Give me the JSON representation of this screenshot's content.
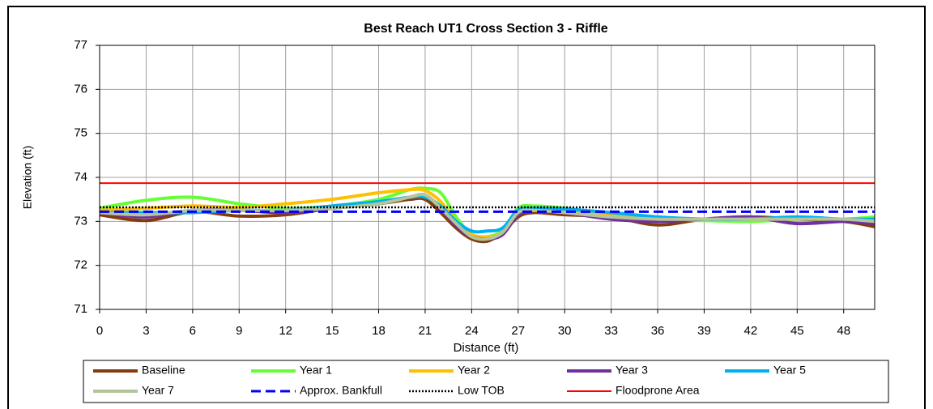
{
  "chart_data": {
    "type": "line",
    "title": "Best Reach UT1 Cross Section 3 - Riffle",
    "x_label": "Distance (ft)",
    "y_label": "Elevation (ft)",
    "x": [
      0,
      3,
      6,
      9,
      12,
      15,
      18,
      20,
      21,
      22,
      23,
      24,
      25,
      26,
      27,
      28,
      30,
      33,
      36,
      39,
      42,
      45,
      48,
      50
    ],
    "xlim": [
      0,
      50
    ],
    "xticks": [
      0,
      3,
      6,
      9,
      12,
      15,
      18,
      21,
      24,
      27,
      30,
      33,
      36,
      39,
      42,
      45,
      48
    ],
    "ylim": [
      71,
      77
    ],
    "yticks": [
      71,
      72,
      73,
      74,
      75,
      76,
      77
    ],
    "grid": true,
    "legend": "bottom",
    "series": [
      {
        "name": "Baseline",
        "color": "#843c0c",
        "line_width": 4,
        "smooth": true,
        "values": [
          73.15,
          73.02,
          73.22,
          73.12,
          73.15,
          73.3,
          73.4,
          73.5,
          73.5,
          73.2,
          72.85,
          72.6,
          72.55,
          72.75,
          73.1,
          73.2,
          73.15,
          73.1,
          72.92,
          73.05,
          73.1,
          73.05,
          73.0,
          72.88
        ]
      },
      {
        "name": "Year 1",
        "color": "#66ff33",
        "line_width": 4,
        "smooth": true,
        "values": [
          73.3,
          73.48,
          73.55,
          73.4,
          73.3,
          73.35,
          73.5,
          73.72,
          73.75,
          73.65,
          73.1,
          72.7,
          72.65,
          72.8,
          73.3,
          73.35,
          73.3,
          73.15,
          73.05,
          73.02,
          73.0,
          73.05,
          73.05,
          73.1
        ]
      },
      {
        "name": "Year 2",
        "color": "#ffc000",
        "line_width": 4,
        "smooth": true,
        "values": [
          73.25,
          73.3,
          73.35,
          73.32,
          73.4,
          73.5,
          73.65,
          73.72,
          73.7,
          73.45,
          73.0,
          72.7,
          72.65,
          72.75,
          73.2,
          73.3,
          73.25,
          73.15,
          73.05,
          73.05,
          73.05,
          73.05,
          73.05,
          73.0
        ]
      },
      {
        "name": "Year 3",
        "color": "#7030a0",
        "line_width": 4,
        "smooth": true,
        "values": [
          73.2,
          73.1,
          73.25,
          73.25,
          73.2,
          73.3,
          73.4,
          73.55,
          73.6,
          73.3,
          72.9,
          72.65,
          72.6,
          72.7,
          73.15,
          73.25,
          73.2,
          73.05,
          73.0,
          73.05,
          73.1,
          72.95,
          73.0,
          72.95
        ]
      },
      {
        "name": "Year 5",
        "color": "#00b0f0",
        "line_width": 4,
        "smooth": true,
        "values": [
          73.2,
          73.2,
          73.2,
          73.25,
          73.25,
          73.35,
          73.45,
          73.55,
          73.55,
          73.35,
          73.0,
          72.78,
          72.78,
          72.85,
          73.25,
          73.3,
          73.28,
          73.2,
          73.1,
          73.05,
          73.05,
          73.1,
          73.05,
          73.05
        ]
      },
      {
        "name": "Year 7",
        "color": "#b3c69a",
        "line_width": 4,
        "smooth": true,
        "values": [
          73.2,
          73.15,
          73.25,
          73.25,
          73.25,
          73.3,
          73.4,
          73.55,
          73.6,
          73.3,
          72.95,
          72.65,
          72.6,
          72.75,
          73.2,
          73.25,
          73.2,
          73.1,
          73.05,
          73.05,
          73.05,
          73.05,
          73.05,
          73.0
        ]
      },
      {
        "name": "Approx. Bankfull",
        "color": "#0000ff",
        "line_width": 3,
        "dash": "dashed",
        "x": [
          0,
          50
        ],
        "values": [
          73.22,
          73.22
        ]
      },
      {
        "name": "Low TOB",
        "color": "#000000",
        "line_width": 2.5,
        "dash": "dotted",
        "x": [
          0,
          50
        ],
        "values": [
          73.32,
          73.32
        ]
      },
      {
        "name": "Floodprone Area",
        "color": "#ff0000",
        "line_width": 2,
        "x": [
          0,
          50
        ],
        "values": [
          73.87,
          73.87
        ]
      }
    ]
  }
}
